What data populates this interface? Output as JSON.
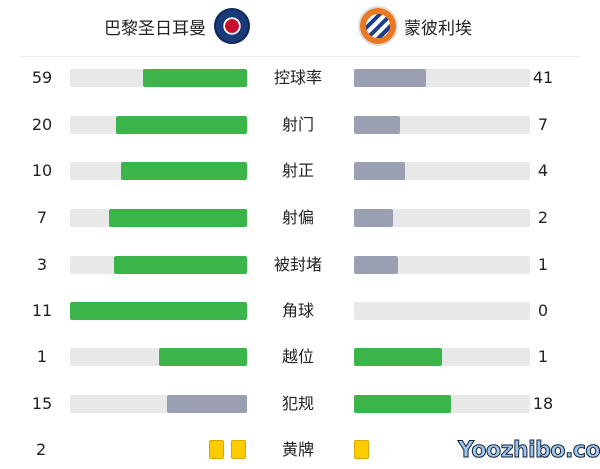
{
  "home": {
    "name": "巴黎圣日耳曼",
    "logo": "psg-crest"
  },
  "away": {
    "name": "蒙彼利埃",
    "logo": "montpellier-crest"
  },
  "colors": {
    "leader": "#3bb54a",
    "trailer": "#9aa0b1",
    "track": "#e8e8e8",
    "card": "#ffcc00"
  },
  "stats": [
    {
      "label": "控球率",
      "home": "59",
      "away": "41",
      "home_fill": 0.59,
      "away_fill": 0.41,
      "home_color": "#3bb54a",
      "away_color": "#9aa0b1"
    },
    {
      "label": "射门",
      "home": "20",
      "away": "7",
      "home_fill": 0.74,
      "away_fill": 0.26,
      "home_color": "#3bb54a",
      "away_color": "#9aa0b1"
    },
    {
      "label": "射正",
      "home": "10",
      "away": "4",
      "home_fill": 0.71,
      "away_fill": 0.29,
      "home_color": "#3bb54a",
      "away_color": "#9aa0b1"
    },
    {
      "label": "射偏",
      "home": "7",
      "away": "2",
      "home_fill": 0.78,
      "away_fill": 0.22,
      "home_color": "#3bb54a",
      "away_color": "#9aa0b1"
    },
    {
      "label": "被封堵",
      "home": "3",
      "away": "1",
      "home_fill": 0.75,
      "away_fill": 0.25,
      "home_color": "#3bb54a",
      "away_color": "#9aa0b1"
    },
    {
      "label": "角球",
      "home": "11",
      "away": "0",
      "home_fill": 1.0,
      "away_fill": 0,
      "home_color": "#3bb54a",
      "away_color": "#9aa0b1"
    },
    {
      "label": "越位",
      "home": "1",
      "away": "1",
      "home_fill": 0.5,
      "away_fill": 0.5,
      "home_color": "#3bb54a",
      "away_color": "#3bb54a"
    },
    {
      "label": "犯规",
      "home": "15",
      "away": "18",
      "home_fill": 0.45,
      "away_fill": 0.55,
      "home_color": "#9aa0b1",
      "away_color": "#3bb54a"
    }
  ],
  "yellow": {
    "label": "黄牌",
    "home": "2",
    "home_cards": 2,
    "away_cards": 1
  },
  "watermark": "Yoozhibo.com"
}
